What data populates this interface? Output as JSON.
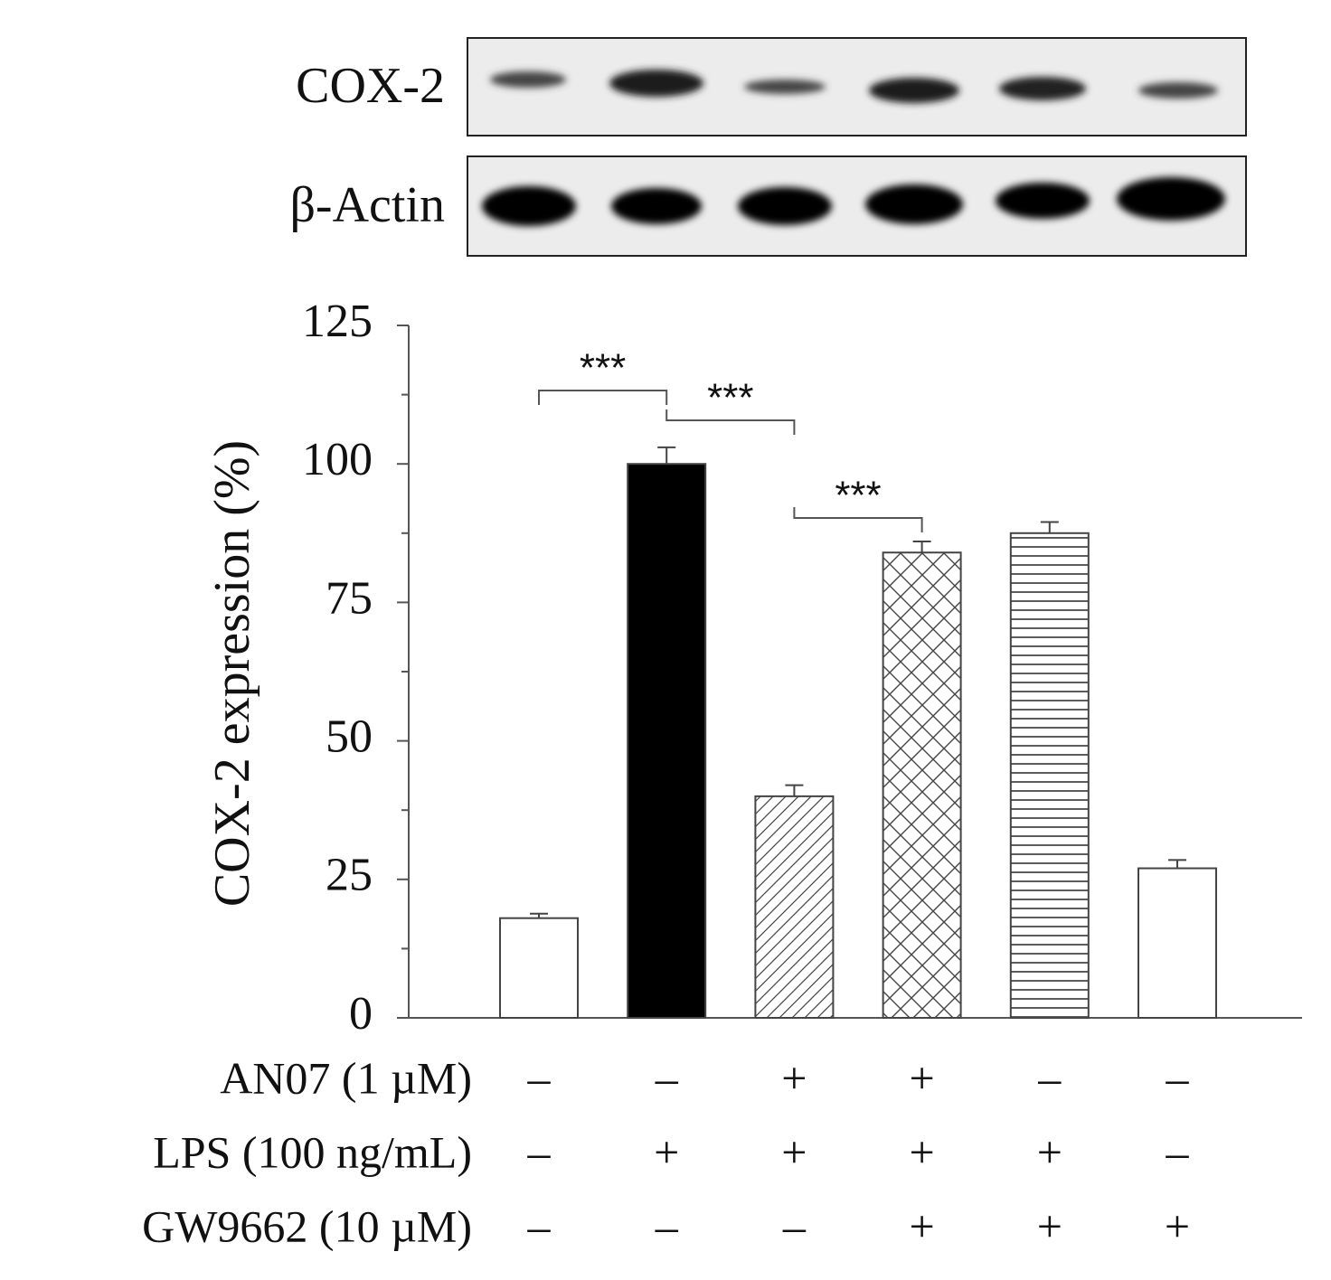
{
  "blot": {
    "rows": [
      "COX-2",
      "β-Actin"
    ]
  },
  "chart_data": {
    "type": "bar",
    "ylabel": "COX-2 expression (%)",
    "values": [
      18,
      100,
      40,
      84,
      87.5,
      27
    ],
    "errors": [
      0.8,
      3,
      2,
      2,
      2,
      1.5
    ],
    "fills": [
      "white",
      "black",
      "diagonal",
      "crosshatch",
      "horizontal",
      "white"
    ],
    "ylim": [
      0,
      125
    ],
    "yticks": [
      0,
      25,
      50,
      75,
      100,
      125
    ],
    "yminorticks": [
      12.5,
      37.5,
      62.5,
      87.5,
      112.5
    ],
    "annotations": [
      "***",
      "***",
      "***"
    ],
    "conditions": [
      {
        "label": "AN07 (1 µM)",
        "signs": [
          "–",
          "–",
          "+",
          "+",
          "–",
          "–"
        ]
      },
      {
        "label": "LPS (100 ng/mL)",
        "signs": [
          "–",
          "+",
          "+",
          "+",
          "+",
          "–"
        ]
      },
      {
        "label": "GW9662 (10 µM)",
        "signs": [
          "–",
          "–",
          "–",
          "+",
          "+",
          "+"
        ]
      }
    ]
  }
}
